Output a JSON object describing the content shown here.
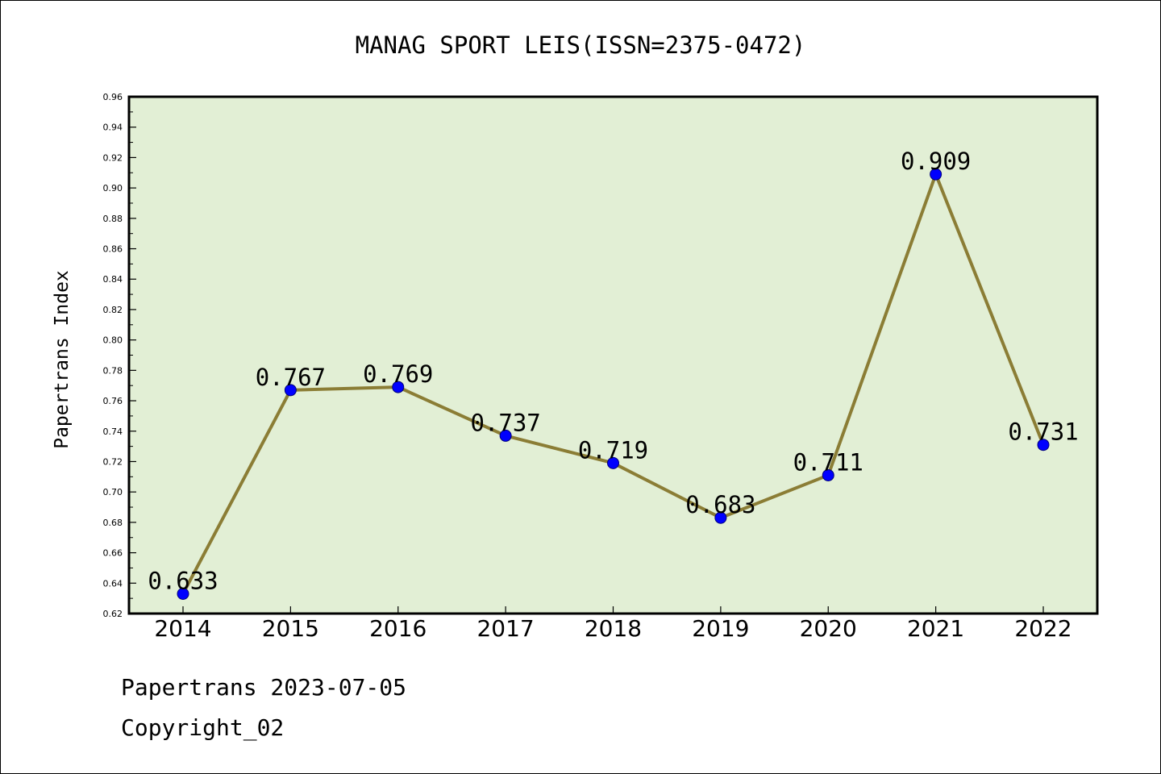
{
  "chart_data": {
    "type": "line",
    "title": "MANAG SPORT LEIS(ISSN=2375-0472)",
    "xlabel": "",
    "ylabel": "Papertrans Index",
    "categories": [
      "2014",
      "2015",
      "2016",
      "2017",
      "2018",
      "2019",
      "2020",
      "2021",
      "2022"
    ],
    "values": [
      0.633,
      0.767,
      0.769,
      0.737,
      0.719,
      0.683,
      0.711,
      0.909,
      0.731
    ],
    "data_labels": [
      "0.633",
      "0.767",
      "0.769",
      "0.737",
      "0.719",
      "0.683",
      "0.711",
      "0.909",
      "0.731"
    ],
    "ylim": [
      0.62,
      0.96
    ],
    "yticks": [
      "0.62",
      "0.64",
      "0.66",
      "0.68",
      "0.70",
      "0.72",
      "0.74",
      "0.76",
      "0.78",
      "0.80",
      "0.82",
      "0.84",
      "0.86",
      "0.88",
      "0.90",
      "0.92",
      "0.94",
      "0.96"
    ],
    "grid": false,
    "colors": {
      "plot_background": "#e2efd5",
      "line": "#8b7d35",
      "marker": "#0000ff"
    }
  },
  "footer": {
    "date_line": "Papertrans 2023-07-05",
    "copyright": "Copyright_02"
  }
}
